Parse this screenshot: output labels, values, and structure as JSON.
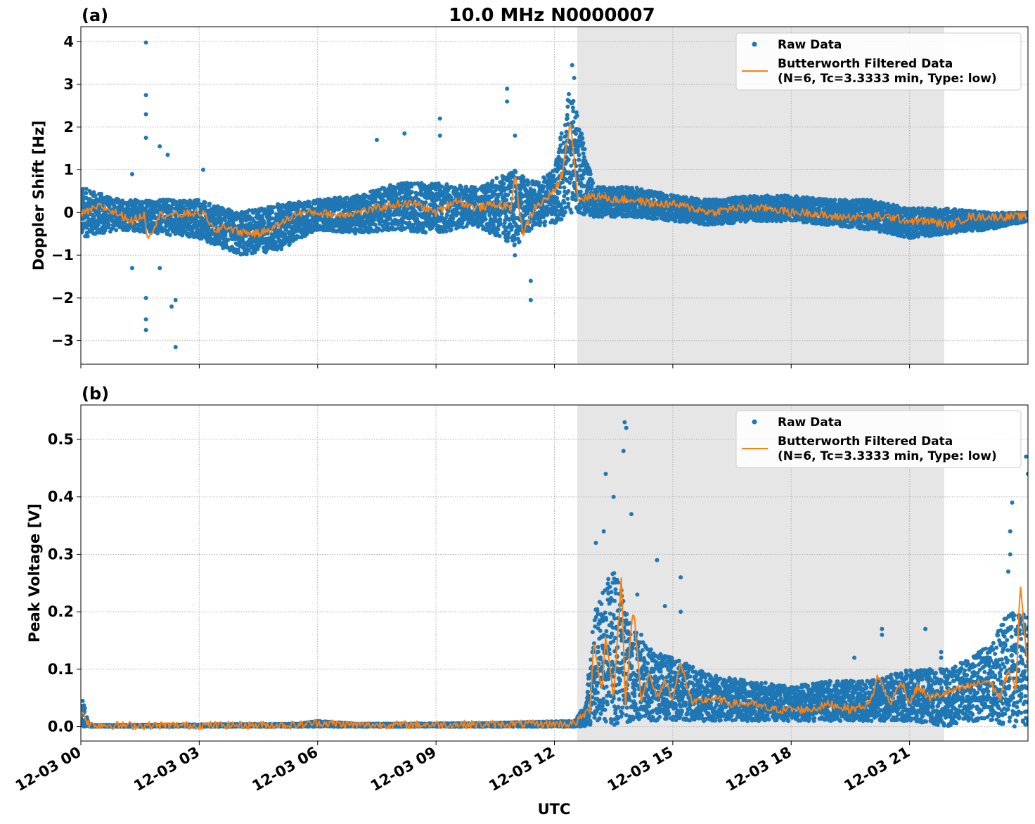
{
  "figure": {
    "title": "10.0 MHz N0000007",
    "xlabel": "UTC"
  },
  "chart_data": [
    {
      "type": "scatter",
      "panel_label": "(a)",
      "ylabel": "Doppler Shift [Hz]",
      "xlim": [
        0,
        24
      ],
      "ylim": [
        -3.55,
        4.35
      ],
      "yticks": [
        4,
        3,
        2,
        1,
        0,
        -1,
        -2,
        -3
      ],
      "ytick_labels": [
        "4",
        "3",
        "2",
        "1",
        "0",
        "−1",
        "−2",
        "−3"
      ],
      "grid": true,
      "legend_position": "top-right",
      "legend": {
        "raw_label": "Raw Data",
        "filtered_label_line1": "Butterworth Filtered Data",
        "filtered_label_line2": "(N=6, Tc=3.3333 min, Type: low)"
      },
      "shaded_interval_hours": [
        12.58,
        21.88
      ],
      "series": [
        {
          "name": "Butterworth Filtered Data",
          "x": [
            0,
            0.5,
            1,
            1.3,
            1.6,
            1.7,
            2,
            2.5,
            3,
            3.2,
            3.4,
            3.6,
            4,
            4.5,
            5,
            5.5,
            6,
            6.5,
            7,
            7.5,
            8,
            8.5,
            9,
            9.5,
            10,
            10.5,
            10.9,
            11,
            11.2,
            11.5,
            12,
            12.2,
            12.4,
            12.6,
            13,
            13.5,
            14,
            14.5,
            15,
            15.5,
            16,
            16.5,
            17,
            17.5,
            18,
            18.5,
            19,
            19.5,
            20,
            20.5,
            21,
            21.5,
            22,
            22.5,
            23,
            23.5,
            24
          ],
          "y": [
            -0.05,
            0.15,
            -0.05,
            -0.2,
            -0.05,
            -0.6,
            -0.05,
            -0.05,
            0.0,
            -0.1,
            -0.5,
            -0.3,
            -0.45,
            -0.5,
            -0.3,
            0.0,
            0.0,
            -0.05,
            0.0,
            0.1,
            0.2,
            0.2,
            0.0,
            0.3,
            0.1,
            0.2,
            0.1,
            0.9,
            -0.5,
            0.1,
            0.5,
            0.9,
            2.2,
            0.3,
            0.4,
            0.3,
            0.3,
            0.2,
            0.2,
            0.1,
            0.0,
            0.1,
            0.1,
            0.1,
            0.0,
            0.0,
            -0.1,
            -0.1,
            -0.1,
            -0.1,
            -0.2,
            -0.2,
            -0.3,
            -0.1,
            -0.1,
            -0.1,
            -0.1
          ]
        },
        {
          "name": "Raw Data",
          "band_x": [
            0,
            1,
            2,
            3,
            4,
            5,
            6,
            7,
            8,
            9,
            10,
            11,
            11.5,
            12,
            12.4,
            13,
            14,
            15,
            16,
            17,
            18,
            19,
            20,
            21,
            22,
            23,
            24
          ],
          "band_lo": [
            -0.6,
            -0.4,
            -0.5,
            -0.6,
            -1.0,
            -0.9,
            -0.4,
            -0.5,
            -0.4,
            -0.5,
            -0.3,
            -0.8,
            -0.3,
            -0.3,
            0.0,
            -0.1,
            -0.1,
            -0.2,
            -0.3,
            -0.2,
            -0.2,
            -0.3,
            -0.4,
            -0.6,
            -0.5,
            -0.4,
            -0.2
          ],
          "band_hi": [
            0.6,
            0.3,
            0.3,
            0.3,
            0.0,
            0.2,
            0.3,
            0.4,
            0.7,
            0.7,
            0.6,
            1.0,
            0.7,
            1.0,
            3.0,
            0.6,
            0.6,
            0.4,
            0.3,
            0.4,
            0.4,
            0.3,
            0.3,
            0.1,
            0.1,
            0.0,
            0.0
          ],
          "outliers_x": [
            1.65,
            1.65,
            1.65,
            1.65,
            1.65,
            1.65,
            1.65,
            2.0,
            2.0,
            2.2,
            2.3,
            2.4,
            2.4,
            1.3,
            1.3,
            3.1,
            7.5,
            8.2,
            9.1,
            9.1,
            10.8,
            10.8,
            11.0,
            11.0,
            11.4,
            11.4,
            12.45,
            12.5
          ],
          "outliers_y": [
            3.98,
            2.75,
            2.3,
            1.75,
            -2.5,
            -2.75,
            -2.0,
            1.55,
            -1.3,
            1.35,
            -2.2,
            -2.05,
            -3.15,
            -1.3,
            0.9,
            1.0,
            1.7,
            1.85,
            2.2,
            1.8,
            2.9,
            2.6,
            1.8,
            -1.0,
            -1.6,
            -2.05,
            3.45,
            3.15
          ]
        }
      ]
    },
    {
      "type": "scatter",
      "panel_label": "(b)",
      "ylabel": "Peak Voltage [V]",
      "xlim": [
        0,
        24
      ],
      "ylim": [
        -0.025,
        0.56
      ],
      "yticks": [
        0.5,
        0.4,
        0.3,
        0.2,
        0.1,
        0.0
      ],
      "ytick_labels": [
        "0.5",
        "0.4",
        "0.3",
        "0.2",
        "0.1",
        "0.0"
      ],
      "grid": true,
      "legend_position": "top-right",
      "legend": {
        "raw_label": "Raw Data",
        "filtered_label_line1": "Butterworth Filtered Data",
        "filtered_label_line2": "(N=6, Tc=3.3333 min, Type: low)"
      },
      "shaded_interval_hours": [
        12.58,
        21.88
      ],
      "series": [
        {
          "name": "Butterworth Filtered Data",
          "x": [
            0,
            0.05,
            0.2,
            1,
            5.5,
            6,
            7,
            10,
            12.5,
            12.9,
            13.0,
            13.2,
            13.3,
            13.5,
            13.7,
            13.8,
            14.0,
            14.2,
            14.4,
            14.6,
            14.8,
            15.0,
            15.2,
            15.5,
            16,
            16.5,
            17,
            17.5,
            18,
            18.5,
            19,
            19.5,
            20,
            20.2,
            20.5,
            20.8,
            21,
            21.2,
            21.5,
            22,
            22.5,
            23,
            23.3,
            23.5,
            23.7,
            23.8,
            24
          ],
          "y": [
            0.02,
            0.025,
            0.004,
            0.002,
            0.003,
            0.007,
            0.003,
            0.004,
            0.005,
            0.03,
            0.15,
            0.06,
            0.16,
            0.05,
            0.26,
            0.04,
            0.21,
            0.05,
            0.09,
            0.05,
            0.08,
            0.05,
            0.11,
            0.04,
            0.05,
            0.04,
            0.04,
            0.03,
            0.03,
            0.03,
            0.04,
            0.03,
            0.04,
            0.09,
            0.04,
            0.08,
            0.04,
            0.07,
            0.05,
            0.06,
            0.07,
            0.08,
            0.05,
            0.1,
            0.06,
            0.25,
            0.1
          ]
        },
        {
          "name": "Raw Data",
          "band_x": [
            0,
            0.05,
            0.2,
            1,
            5.5,
            6,
            7,
            10,
            12.5,
            12.8,
            13,
            13.5,
            14,
            14.5,
            15,
            16,
            17,
            18,
            19,
            20,
            21,
            22,
            22.5,
            23,
            23.5,
            24
          ],
          "band_lo": [
            0.0,
            0.0,
            0.0,
            0.0,
            0.0,
            0.0,
            0.0,
            0.0,
            0.0,
            0.0,
            0.0,
            0.0,
            0.01,
            0.01,
            0.01,
            0.01,
            0.01,
            0.01,
            0.01,
            0.01,
            0.01,
            0.0,
            0.01,
            0.01,
            0.0,
            0.0
          ],
          "band_hi": [
            0.04,
            0.05,
            0.003,
            0.003,
            0.005,
            0.01,
            0.005,
            0.006,
            0.01,
            0.04,
            0.2,
            0.28,
            0.17,
            0.13,
            0.12,
            0.09,
            0.08,
            0.07,
            0.08,
            0.08,
            0.1,
            0.1,
            0.12,
            0.14,
            0.2,
            0.2
          ],
          "outliers_x": [
            13.05,
            13.25,
            13.3,
            13.5,
            13.75,
            13.78,
            13.82,
            13.95,
            14.1,
            14.2,
            14.6,
            14.8,
            15.2,
            15.2,
            19.6,
            20.3,
            20.3,
            21.4,
            21.8,
            21.8,
            23.5,
            23.55,
            23.55,
            23.6,
            23.95,
            24.0
          ],
          "outliers_y": [
            0.32,
            0.34,
            0.44,
            0.4,
            0.48,
            0.53,
            0.52,
            0.37,
            0.23,
            0.16,
            0.29,
            0.21,
            0.26,
            0.2,
            0.12,
            0.16,
            0.17,
            0.17,
            0.13,
            0.12,
            0.27,
            0.3,
            0.34,
            0.39,
            0.47,
            0.44
          ]
        }
      ]
    }
  ],
  "x_axis": {
    "tick_hours": [
      0,
      3,
      6,
      9,
      12,
      15,
      18,
      21
    ],
    "tick_labels": [
      "12-03 00",
      "12-03 03",
      "12-03 06",
      "12-03 09",
      "12-03 12",
      "12-03 15",
      "12-03 18",
      "12-03 21"
    ]
  },
  "colors": {
    "raw": "#1f77b4",
    "filtered": "#ff7f0e",
    "shade": "#e6e6e6",
    "grid": "#b0b0b0"
  }
}
